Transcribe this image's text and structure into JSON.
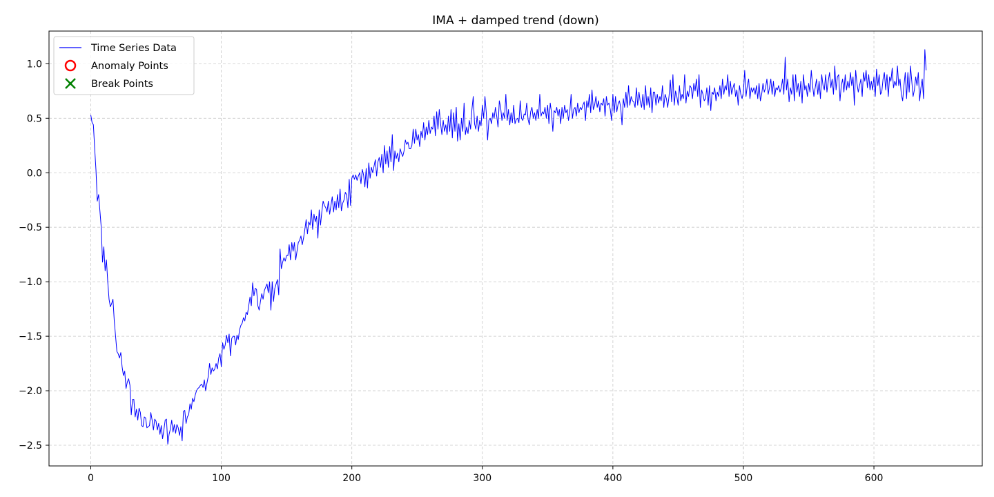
{
  "chart_data": {
    "type": "line",
    "title": "IMA + damped trend (down)",
    "xlabel": "",
    "ylabel": "",
    "xlim": [
      -32,
      683
    ],
    "ylim": [
      -2.69,
      1.3
    ],
    "x_ticks": [
      0,
      100,
      200,
      300,
      400,
      500,
      600
    ],
    "y_ticks": [
      -2.5,
      -2.0,
      -1.5,
      -1.0,
      -0.5,
      0.0,
      0.5,
      1.0
    ],
    "x_tick_labels": [
      "0",
      "100",
      "200",
      "300",
      "400",
      "500",
      "600"
    ],
    "y_tick_labels": [
      "−2.5",
      "−2.0",
      "−1.5",
      "−1.0",
      "−0.5",
      "0.0",
      "0.5",
      "1.0"
    ],
    "grid": true,
    "legend_position": "upper-left",
    "legend": [
      {
        "label": "Time Series Data",
        "marker": "line",
        "color": "#0000ff"
      },
      {
        "label": "Anomaly Points",
        "marker": "circle",
        "color": "#ff0000"
      },
      {
        "label": "Break Points",
        "marker": "x",
        "color": "#008000"
      }
    ],
    "series": [
      {
        "name": "Time Series Data",
        "color": "#0000ff",
        "x_start": 0,
        "x_step": 1,
        "values": [
          0.53,
          0.46,
          0.44,
          0.22,
          0.02,
          -0.26,
          -0.2,
          -0.35,
          -0.5,
          -0.82,
          -0.68,
          -0.9,
          -0.8,
          -1.0,
          -1.16,
          -1.23,
          -1.2,
          -1.16,
          -1.36,
          -1.5,
          -1.64,
          -1.66,
          -1.7,
          -1.65,
          -1.78,
          -1.86,
          -1.82,
          -1.98,
          -1.92,
          -1.89,
          -1.95,
          -2.22,
          -2.08,
          -2.08,
          -2.24,
          -2.17,
          -2.27,
          -2.16,
          -2.2,
          -2.32,
          -2.33,
          -2.24,
          -2.25,
          -2.34,
          -2.33,
          -2.32,
          -2.2,
          -2.27,
          -2.36,
          -2.26,
          -2.28,
          -2.36,
          -2.3,
          -2.4,
          -2.32,
          -2.44,
          -2.36,
          -2.27,
          -2.26,
          -2.49,
          -2.4,
          -2.35,
          -2.27,
          -2.38,
          -2.31,
          -2.39,
          -2.31,
          -2.34,
          -2.41,
          -2.33,
          -2.46,
          -2.19,
          -2.18,
          -2.3,
          -2.24,
          -2.22,
          -2.12,
          -2.17,
          -2.07,
          -2.1,
          -2.04,
          -2.0,
          -1.98,
          -1.97,
          -1.95,
          -1.94,
          -1.97,
          -1.9,
          -2.0,
          -1.93,
          -1.87,
          -1.75,
          -1.85,
          -1.79,
          -1.82,
          -1.8,
          -1.75,
          -1.8,
          -1.7,
          -1.66,
          -1.78,
          -1.56,
          -1.62,
          -1.58,
          -1.49,
          -1.56,
          -1.48,
          -1.68,
          -1.52,
          -1.5,
          -1.5,
          -1.58,
          -1.49,
          -1.53,
          -1.44,
          -1.4,
          -1.38,
          -1.33,
          -1.36,
          -1.28,
          -1.3,
          -1.22,
          -1.14,
          -1.22,
          -1.01,
          -1.13,
          -1.06,
          -1.07,
          -1.22,
          -1.26,
          -1.18,
          -1.11,
          -1.16,
          -1.08,
          -1.05,
          -1.02,
          -1.1,
          -1.0,
          -1.26,
          -1.0,
          -1.18,
          -1.06,
          -1.02,
          -0.98,
          -1.12,
          -0.7,
          -0.88,
          -0.82,
          -0.78,
          -0.81,
          -0.76,
          -0.76,
          -0.66,
          -0.8,
          -0.64,
          -0.72,
          -0.64,
          -0.8,
          -0.72,
          -0.64,
          -0.62,
          -0.58,
          -0.66,
          -0.6,
          -0.52,
          -0.43,
          -0.56,
          -0.45,
          -0.48,
          -0.34,
          -0.52,
          -0.38,
          -0.45,
          -0.4,
          -0.6,
          -0.34,
          -0.48,
          -0.36,
          -0.26,
          -0.3,
          -0.32,
          -0.36,
          -0.26,
          -0.38,
          -0.3,
          -0.22,
          -0.36,
          -0.26,
          -0.34,
          -0.2,
          -0.32,
          -0.15,
          -0.35,
          -0.28,
          -0.25,
          -0.18,
          -0.2,
          -0.32,
          -0.06,
          -0.3,
          -0.05,
          -0.02,
          -0.06,
          -0.02,
          -0.07,
          -0.03,
          0.0,
          -0.1,
          0.03,
          -0.02,
          -0.13,
          0.04,
          -0.14,
          0.09,
          -0.05,
          0.05,
          0.0,
          0.06,
          0.12,
          -0.03,
          0.1,
          0.14,
          0.05,
          0.17,
          0.0,
          0.25,
          0.08,
          0.2,
          0.05,
          0.24,
          0.1,
          0.35,
          0.02,
          0.2,
          0.13,
          0.18,
          0.1,
          0.22,
          0.18,
          0.15,
          0.2,
          0.3,
          0.26,
          0.28,
          0.22,
          0.22,
          0.25,
          0.4,
          0.27,
          0.4,
          0.3,
          0.35,
          0.24,
          0.38,
          0.32,
          0.46,
          0.3,
          0.42,
          0.35,
          0.48,
          0.36,
          0.42,
          0.4,
          0.52,
          0.34,
          0.56,
          0.4,
          0.58,
          0.45,
          0.35,
          0.48,
          0.38,
          0.44,
          0.35,
          0.52,
          0.38,
          0.58,
          0.32,
          0.55,
          0.38,
          0.6,
          0.29,
          0.45,
          0.3,
          0.5,
          0.38,
          0.64,
          0.35,
          0.42,
          0.36,
          0.48,
          0.4,
          0.58,
          0.7,
          0.45,
          0.4,
          0.52,
          0.38,
          0.48,
          0.43,
          0.62,
          0.5,
          0.7,
          0.55,
          0.3,
          0.48,
          0.5,
          0.45,
          0.55,
          0.5,
          0.6,
          0.52,
          0.42,
          0.66,
          0.6,
          0.48,
          0.55,
          0.5,
          0.72,
          0.48,
          0.58,
          0.44,
          0.55,
          0.46,
          0.62,
          0.45,
          0.49,
          0.5,
          0.46,
          0.66,
          0.5,
          0.48,
          0.54,
          0.53,
          0.64,
          0.49,
          0.44,
          0.56,
          0.6,
          0.5,
          0.55,
          0.48,
          0.58,
          0.5,
          0.72,
          0.52,
          0.56,
          0.54,
          0.6,
          0.5,
          0.62,
          0.45,
          0.64,
          0.55,
          0.38,
          0.57,
          0.55,
          0.6,
          0.52,
          0.58,
          0.45,
          0.6,
          0.5,
          0.62,
          0.55,
          0.58,
          0.48,
          0.56,
          0.72,
          0.5,
          0.58,
          0.6,
          0.52,
          0.64,
          0.55,
          0.6,
          0.58,
          0.62,
          0.65,
          0.48,
          0.66,
          0.6,
          0.72,
          0.55,
          0.76,
          0.58,
          0.62,
          0.7,
          0.6,
          0.66,
          0.56,
          0.64,
          0.62,
          0.68,
          0.52,
          0.7,
          0.62,
          0.64,
          0.58,
          0.48,
          0.72,
          0.55,
          0.7,
          0.56,
          0.63,
          0.66,
          0.6,
          0.44,
          0.68,
          0.6,
          0.74,
          0.6,
          0.8,
          0.62,
          0.7,
          0.66,
          0.65,
          0.6,
          0.78,
          0.62,
          0.74,
          0.65,
          0.6,
          0.72,
          0.58,
          0.8,
          0.62,
          0.7,
          0.6,
          0.78,
          0.55,
          0.74,
          0.74,
          0.62,
          0.72,
          0.64,
          0.7,
          0.66,
          0.8,
          0.6,
          0.72,
          0.68,
          0.6,
          0.7,
          0.85,
          0.65,
          0.9,
          0.62,
          0.75,
          0.7,
          0.62,
          0.8,
          0.66,
          0.72,
          0.68,
          0.9,
          0.64,
          0.75,
          0.7,
          0.8,
          0.78,
          0.68,
          0.82,
          0.75,
          0.86,
          0.7,
          0.9,
          0.6,
          0.76,
          0.72,
          0.66,
          0.68,
          0.78,
          0.62,
          0.8,
          0.57,
          0.74,
          0.72,
          0.78,
          0.66,
          0.74,
          0.7,
          0.8,
          0.68,
          0.86,
          0.72,
          0.8,
          0.76,
          0.9,
          0.7,
          0.84,
          0.72,
          0.78,
          0.82,
          0.7,
          0.76,
          0.62,
          0.8,
          0.72,
          0.68,
          0.74,
          0.94,
          0.7,
          0.8,
          0.86,
          0.68,
          0.78,
          0.74,
          0.78,
          0.72,
          0.8,
          0.68,
          0.82,
          0.66,
          0.72,
          0.82,
          0.74,
          0.78,
          0.86,
          0.72,
          0.78,
          0.86,
          0.72,
          0.84,
          0.7,
          0.78,
          0.76,
          0.8,
          0.74,
          0.78,
          0.86,
          0.72,
          1.06,
          0.76,
          0.86,
          0.65,
          0.78,
          0.72,
          0.9,
          0.66,
          0.9,
          0.74,
          0.82,
          0.7,
          0.84,
          0.64,
          0.9,
          0.76,
          0.8,
          0.7,
          0.82,
          0.74,
          0.94,
          0.8,
          0.7,
          0.78,
          0.86,
          0.72,
          0.84,
          0.68,
          0.9,
          0.8,
          0.76,
          0.9,
          0.74,
          0.84,
          0.92,
          0.78,
          0.86,
          0.72,
          0.98,
          0.76,
          0.88,
          0.9,
          0.66,
          0.8,
          0.86,
          0.74,
          0.9,
          0.76,
          0.84,
          0.78,
          0.92,
          0.8,
          0.88,
          0.62,
          0.94,
          0.82,
          0.74,
          0.8,
          0.86,
          0.7,
          0.92,
          0.84,
          0.94,
          0.78,
          0.9,
          0.76,
          0.84,
          0.76,
          0.88,
          0.7,
          0.95,
          0.8,
          0.9,
          0.72,
          0.74,
          0.86,
          0.92,
          0.76,
          0.9,
          0.7,
          0.88,
          0.84,
          0.96,
          0.78,
          0.84,
          0.8,
          0.98,
          0.8,
          0.86,
          0.72,
          0.66,
          0.8,
          0.92,
          0.68,
          0.92,
          0.74,
          0.98,
          0.84,
          0.7,
          0.76,
          0.88,
          0.8,
          0.92,
          0.66,
          0.78,
          0.86,
          0.68,
          1.13,
          0.94
        ]
      }
    ]
  }
}
